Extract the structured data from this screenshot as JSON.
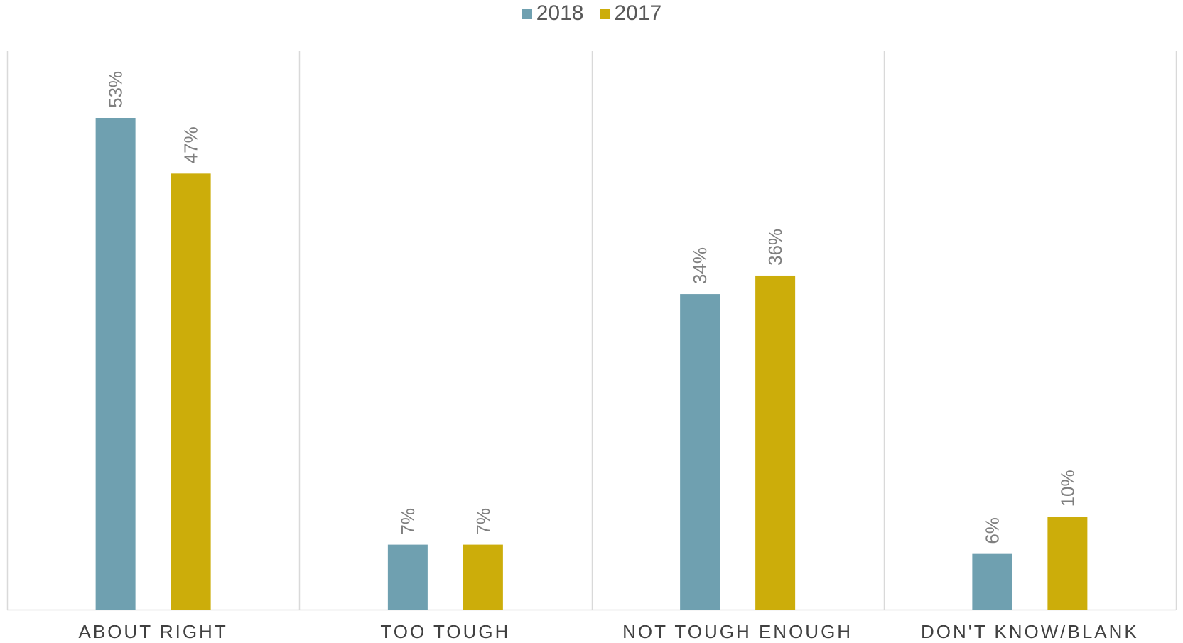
{
  "chart_data": {
    "type": "bar",
    "categories": [
      "ABOUT RIGHT",
      "TOO TOUGH",
      "NOT TOUGH ENOUGH",
      "DON'T KNOW/BLANK"
    ],
    "series": [
      {
        "name": "2018",
        "color": "#6fa0b0",
        "values": [
          53,
          7,
          34,
          6
        ],
        "labels": [
          "53%",
          "7%",
          "34%",
          "6%"
        ]
      },
      {
        "name": "2017",
        "color": "#ccad0a",
        "values": [
          47,
          7,
          36,
          10
        ],
        "labels": [
          "47%",
          "7%",
          "36%",
          "10%"
        ]
      }
    ],
    "ylim": [
      0,
      60
    ],
    "legend_position": "top-center",
    "grid": "vertical category separators"
  }
}
